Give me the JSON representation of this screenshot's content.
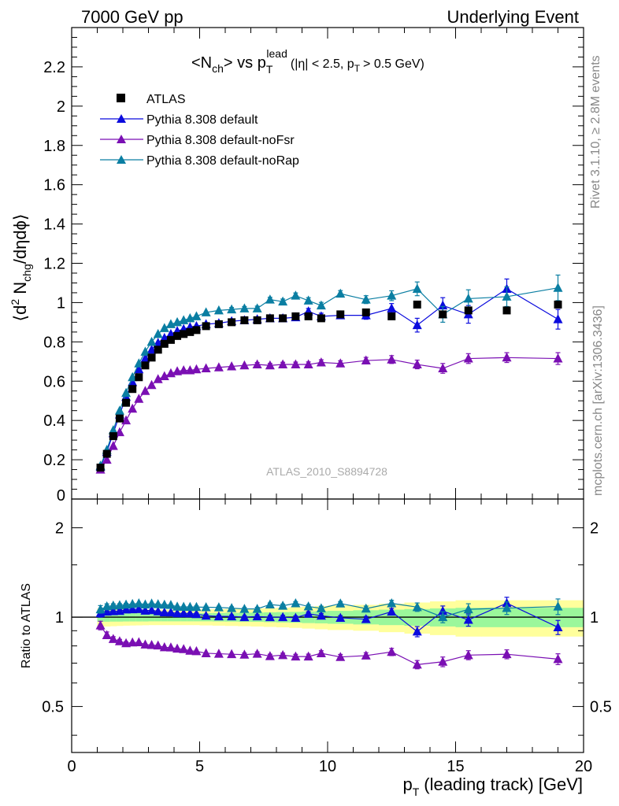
{
  "header": {
    "left": "7000 GeV pp",
    "right": "Underlying Event"
  },
  "side_labels": {
    "rivet": "Rivet 3.1.10, ≥ 2.8M events",
    "mcplots": "mcplots.cern.ch [arXiv:1306.3436]"
  },
  "chart_data": {
    "type": "scatter",
    "title": "<N_ch> vs p_T^lead (|η| < 2.5, p_T > 0.5 GeV)",
    "title_parts": {
      "a": "<N",
      "a_sub": "ch",
      "b": "> vs p",
      "b_sub": "T",
      "b_sup": "lead",
      "c": "(|η| < 2.5, p",
      "c_sub": "T",
      "d": "> 0.5 GeV)"
    },
    "watermark": "ATLAS_2010_S8894728",
    "ylabel_parts": {
      "a": "⟨d",
      "a_sup": "2",
      "b": " N",
      "b_sub": "chg",
      "c": "/dηdϕ⟩"
    },
    "xlabel_parts": {
      "a": "p",
      "a_sub": "T",
      "b": "(leading track) [GeV]"
    },
    "xlim": [
      0,
      20
    ],
    "ylim": [
      0,
      2.4
    ],
    "x_ticks": [
      "0",
      "5",
      "10",
      "15",
      "20"
    ],
    "y_ticks": [
      "0.2",
      "0.4",
      "0.6",
      "0.8",
      "1",
      "1.2",
      "1.4",
      "1.6",
      "1.8",
      "2",
      "2.2"
    ],
    "y_tick_values": [
      0.2,
      0.4,
      0.6,
      0.8,
      1.0,
      1.2,
      1.4,
      1.6,
      1.8,
      2.0,
      2.2
    ],
    "y_zero_label": "0",
    "legend_position": "top-left",
    "legend": [
      "ATLAS",
      "Pythia 8.308 default",
      "Pythia 8.308 default-noFsr",
      "Pythia 8.308 default-noRap"
    ],
    "colors": {
      "ATLAS": "#000000",
      "default": "#0b0bdd",
      "noFsr": "#7a0fb3",
      "noRap": "#0a7ea2",
      "band_inner": "#9bf79b",
      "band_outer": "#ffff9c"
    },
    "series": [
      {
        "name": "ATLAS",
        "marker": "square",
        "x": [
          1.125,
          1.375,
          1.625,
          1.875,
          2.125,
          2.375,
          2.625,
          2.875,
          3.125,
          3.375,
          3.625,
          3.875,
          4.125,
          4.375,
          4.625,
          4.875,
          5.25,
          5.75,
          6.25,
          6.75,
          7.25,
          7.75,
          8.25,
          8.75,
          9.25,
          9.75,
          10.5,
          11.5,
          12.5,
          13.5,
          14.5,
          15.5,
          17.0,
          19.0
        ],
        "y": [
          0.16,
          0.23,
          0.32,
          0.41,
          0.49,
          0.56,
          0.62,
          0.68,
          0.72,
          0.76,
          0.79,
          0.81,
          0.83,
          0.84,
          0.85,
          0.86,
          0.88,
          0.89,
          0.9,
          0.91,
          0.91,
          0.92,
          0.92,
          0.93,
          0.93,
          0.92,
          0.94,
          0.95,
          0.93,
          0.99,
          0.94,
          0.96,
          0.96,
          0.99
        ]
      },
      {
        "name": "Pythia 8.308 default",
        "marker": "triangle",
        "x": [
          1.125,
          1.375,
          1.625,
          1.875,
          2.125,
          2.375,
          2.625,
          2.875,
          3.125,
          3.375,
          3.625,
          3.875,
          4.125,
          4.375,
          4.625,
          4.875,
          5.25,
          5.75,
          6.25,
          6.75,
          7.25,
          7.75,
          8.25,
          8.75,
          9.25,
          9.75,
          10.5,
          11.5,
          12.5,
          13.5,
          14.5,
          15.5,
          17.0,
          19.0
        ],
        "y": [
          0.165,
          0.24,
          0.335,
          0.43,
          0.52,
          0.595,
          0.66,
          0.715,
          0.76,
          0.795,
          0.82,
          0.84,
          0.855,
          0.865,
          0.875,
          0.88,
          0.89,
          0.895,
          0.905,
          0.91,
          0.915,
          0.92,
          0.92,
          0.925,
          0.955,
          0.93,
          0.935,
          0.935,
          0.97,
          0.885,
          0.985,
          0.94,
          1.07,
          0.915
        ],
        "yerr": [
          0.005,
          0.005,
          0.005,
          0.005,
          0.005,
          0.005,
          0.005,
          0.005,
          0.006,
          0.006,
          0.006,
          0.006,
          0.007,
          0.007,
          0.007,
          0.008,
          0.008,
          0.009,
          0.01,
          0.01,
          0.012,
          0.012,
          0.013,
          0.014,
          0.015,
          0.016,
          0.016,
          0.02,
          0.025,
          0.035,
          0.04,
          0.045,
          0.05,
          0.05
        ]
      },
      {
        "name": "Pythia 8.308 default-noFsr",
        "marker": "triangle",
        "x": [
          1.125,
          1.375,
          1.625,
          1.875,
          2.125,
          2.375,
          2.625,
          2.875,
          3.125,
          3.375,
          3.625,
          3.875,
          4.125,
          4.375,
          4.625,
          4.875,
          5.25,
          5.75,
          6.25,
          6.75,
          7.25,
          7.75,
          8.25,
          8.75,
          9.25,
          9.75,
          10.5,
          11.5,
          12.5,
          13.5,
          14.5,
          15.5,
          17.0,
          19.0
        ],
        "y": [
          0.15,
          0.2,
          0.27,
          0.34,
          0.4,
          0.46,
          0.51,
          0.55,
          0.58,
          0.61,
          0.625,
          0.64,
          0.65,
          0.655,
          0.655,
          0.66,
          0.665,
          0.67,
          0.675,
          0.68,
          0.685,
          0.68,
          0.685,
          0.685,
          0.685,
          0.695,
          0.69,
          0.705,
          0.71,
          0.685,
          0.665,
          0.715,
          0.72,
          0.715
        ],
        "yerr": [
          0.005,
          0.005,
          0.005,
          0.005,
          0.005,
          0.005,
          0.005,
          0.005,
          0.005,
          0.005,
          0.006,
          0.006,
          0.006,
          0.006,
          0.007,
          0.007,
          0.007,
          0.008,
          0.008,
          0.009,
          0.01,
          0.01,
          0.011,
          0.012,
          0.013,
          0.014,
          0.014,
          0.016,
          0.02,
          0.022,
          0.025,
          0.025,
          0.025,
          0.03
        ]
      },
      {
        "name": "Pythia 8.308 default-noRap",
        "marker": "triangle",
        "x": [
          1.125,
          1.375,
          1.625,
          1.875,
          2.125,
          2.375,
          2.625,
          2.875,
          3.125,
          3.375,
          3.625,
          3.875,
          4.125,
          4.375,
          4.625,
          4.875,
          5.25,
          5.75,
          6.25,
          6.75,
          7.25,
          7.75,
          8.25,
          8.75,
          9.25,
          9.75,
          10.5,
          11.5,
          12.5,
          13.5,
          14.5,
          15.5,
          17.0,
          19.0
        ],
        "y": [
          0.17,
          0.25,
          0.35,
          0.45,
          0.54,
          0.62,
          0.69,
          0.75,
          0.8,
          0.84,
          0.87,
          0.89,
          0.9,
          0.91,
          0.92,
          0.93,
          0.95,
          0.96,
          0.965,
          0.97,
          0.97,
          1.015,
          1.005,
          1.035,
          1.01,
          0.985,
          1.045,
          1.015,
          1.035,
          1.07,
          0.94,
          1.02,
          1.03,
          1.075
        ],
        "yerr": [
          0.005,
          0.005,
          0.005,
          0.005,
          0.005,
          0.005,
          0.005,
          0.005,
          0.006,
          0.006,
          0.006,
          0.006,
          0.007,
          0.007,
          0.007,
          0.008,
          0.008,
          0.009,
          0.01,
          0.01,
          0.012,
          0.012,
          0.013,
          0.014,
          0.015,
          0.016,
          0.016,
          0.02,
          0.025,
          0.035,
          0.04,
          0.045,
          0.05,
          0.065
        ]
      }
    ],
    "ratio": {
      "ylabel": "Ratio to ATLAS",
      "y_ticks": [
        "0.5",
        "1",
        "2"
      ],
      "y_tick_values": [
        0.5,
        1,
        2
      ],
      "band_x": [
        1.0,
        1.25,
        1.5,
        1.75,
        2.0,
        2.25,
        2.5,
        2.75,
        3.0,
        3.25,
        3.5,
        3.75,
        4.0,
        4.25,
        4.5,
        4.75,
        5.0,
        5.5,
        6.0,
        6.5,
        7.0,
        7.5,
        8.0,
        8.5,
        9.0,
        9.5,
        10.0,
        11.0,
        12.0,
        13.0,
        14.0,
        15.0,
        16.0,
        18.0,
        20.0
      ],
      "band_inner": [
        0.035,
        0.035,
        0.034,
        0.034,
        0.033,
        0.033,
        0.033,
        0.033,
        0.032,
        0.032,
        0.032,
        0.032,
        0.032,
        0.032,
        0.032,
        0.032,
        0.032,
        0.033,
        0.034,
        0.035,
        0.036,
        0.038,
        0.04,
        0.042,
        0.045,
        0.047,
        0.05,
        0.055,
        0.06,
        0.065,
        0.07,
        0.075,
        0.075,
        0.075
      ],
      "band_outer": [
        0.07,
        0.07,
        0.068,
        0.066,
        0.064,
        0.063,
        0.062,
        0.061,
        0.06,
        0.06,
        0.06,
        0.06,
        0.06,
        0.06,
        0.06,
        0.06,
        0.062,
        0.064,
        0.066,
        0.068,
        0.07,
        0.073,
        0.076,
        0.08,
        0.085,
        0.09,
        0.095,
        0.1,
        0.11,
        0.12,
        0.13,
        0.14,
        0.14,
        0.14
      ]
    }
  }
}
